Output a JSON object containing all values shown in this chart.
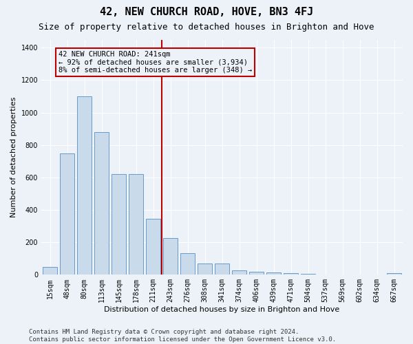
{
  "title": "42, NEW CHURCH ROAD, HOVE, BN3 4FJ",
  "subtitle": "Size of property relative to detached houses in Brighton and Hove",
  "xlabel": "Distribution of detached houses by size in Brighton and Hove",
  "ylabel": "Number of detached properties",
  "categories": [
    "15sqm",
    "48sqm",
    "80sqm",
    "113sqm",
    "145sqm",
    "178sqm",
    "211sqm",
    "243sqm",
    "276sqm",
    "308sqm",
    "341sqm",
    "374sqm",
    "406sqm",
    "439sqm",
    "471sqm",
    "504sqm",
    "537sqm",
    "569sqm",
    "602sqm",
    "634sqm",
    "667sqm"
  ],
  "values": [
    50,
    750,
    1100,
    880,
    620,
    620,
    345,
    225,
    135,
    70,
    70,
    25,
    20,
    15,
    10,
    5,
    2,
    1,
    0,
    0,
    10
  ],
  "bar_color": "#c9daea",
  "bar_edge_color": "#6699cc",
  "vline_x_index": 7,
  "vline_color": "#bb0000",
  "annotation_title": "42 NEW CHURCH ROAD: 241sqm",
  "annotation_line1": "← 92% of detached houses are smaller (3,934)",
  "annotation_line2": "8% of semi-detached houses are larger (348) →",
  "annotation_box_edgecolor": "#bb0000",
  "ylim": [
    0,
    1450
  ],
  "yticks": [
    0,
    200,
    400,
    600,
    800,
    1000,
    1200,
    1400
  ],
  "footer": "Contains HM Land Registry data © Crown copyright and database right 2024.\nContains public sector information licensed under the Open Government Licence v3.0.",
  "bg_color": "#edf2f8",
  "grid_color": "#ffffff",
  "title_fontsize": 11,
  "subtitle_fontsize": 9,
  "ylabel_fontsize": 8,
  "xlabel_fontsize": 8,
  "tick_fontsize": 7,
  "footer_fontsize": 6.5,
  "annotation_fontsize": 7.5
}
